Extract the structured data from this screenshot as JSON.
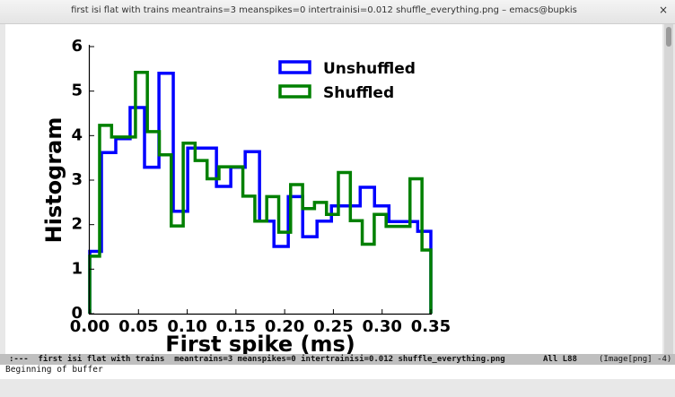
{
  "window": {
    "title": "first isi flat with trains  meantrains=3 meanspikes=0 intertrainisi=0.012 shuffle_everything.png – emacs@bupkis",
    "close_label": "×"
  },
  "modeline": {
    "left": ":---  first isi flat with trains  meantrains=3 meanspikes=0 intertrainisi=0.012 shuffle_everything.png",
    "position": "All L88",
    "mode": "(Image[png] -4)"
  },
  "echo_area": "Beginning of buffer",
  "chart_data": {
    "type": "step-histogram",
    "xlabel": "First spike (ms)",
    "ylabel": "Histogram",
    "xlim": [
      0,
      0.35
    ],
    "ylim": [
      0,
      6
    ],
    "xticks": [
      "0.00",
      "0.05",
      "0.10",
      "0.15",
      "0.20",
      "0.25",
      "0.30",
      "0.35"
    ],
    "yticks": [
      "0",
      "1",
      "2",
      "3",
      "4",
      "5",
      "6"
    ],
    "grid": false,
    "legend_position": "top-right",
    "series": [
      {
        "name": "Unshuffled",
        "color": "#0000ff",
        "bin_edges": [
          0,
          0.012,
          0.0267,
          0.0414,
          0.0562,
          0.071,
          0.0857,
          0.1005,
          0.1152,
          0.13,
          0.1447,
          0.1595,
          0.1742,
          0.189,
          0.2037,
          0.2185,
          0.2332,
          0.248,
          0.2627,
          0.2775,
          0.2922,
          0.307,
          0.3217,
          0.3365,
          0.35
        ],
        "values": [
          1.4,
          3.62,
          3.93,
          4.63,
          3.29,
          5.4,
          2.3,
          3.72,
          3.72,
          2.86,
          3.29,
          3.64,
          2.08,
          1.51,
          2.63,
          1.73,
          2.08,
          2.42,
          2.42,
          2.84,
          2.42,
          2.07,
          2.07,
          1.85
        ]
      },
      {
        "name": "Shuffled",
        "color": "#008000",
        "bin_edges": [
          0,
          0.0101,
          0.0224,
          0.0346,
          0.0469,
          0.0591,
          0.0714,
          0.0836,
          0.0959,
          0.1081,
          0.1204,
          0.1326,
          0.1449,
          0.1571,
          0.1694,
          0.1816,
          0.1939,
          0.2061,
          0.2184,
          0.2306,
          0.2429,
          0.2551,
          0.2674,
          0.2796,
          0.2919,
          0.3041,
          0.3164,
          0.3286,
          0.3409,
          0.35
        ],
        "values": [
          1.29,
          4.23,
          3.97,
          3.97,
          5.42,
          4.09,
          3.57,
          1.97,
          3.83,
          3.44,
          3.03,
          3.3,
          3.3,
          2.64,
          2.08,
          2.63,
          1.83,
          2.9,
          2.36,
          2.5,
          2.23,
          3.17,
          2.09,
          1.56,
          2.23,
          1.96,
          1.96,
          3.03,
          1.43
        ]
      }
    ]
  }
}
